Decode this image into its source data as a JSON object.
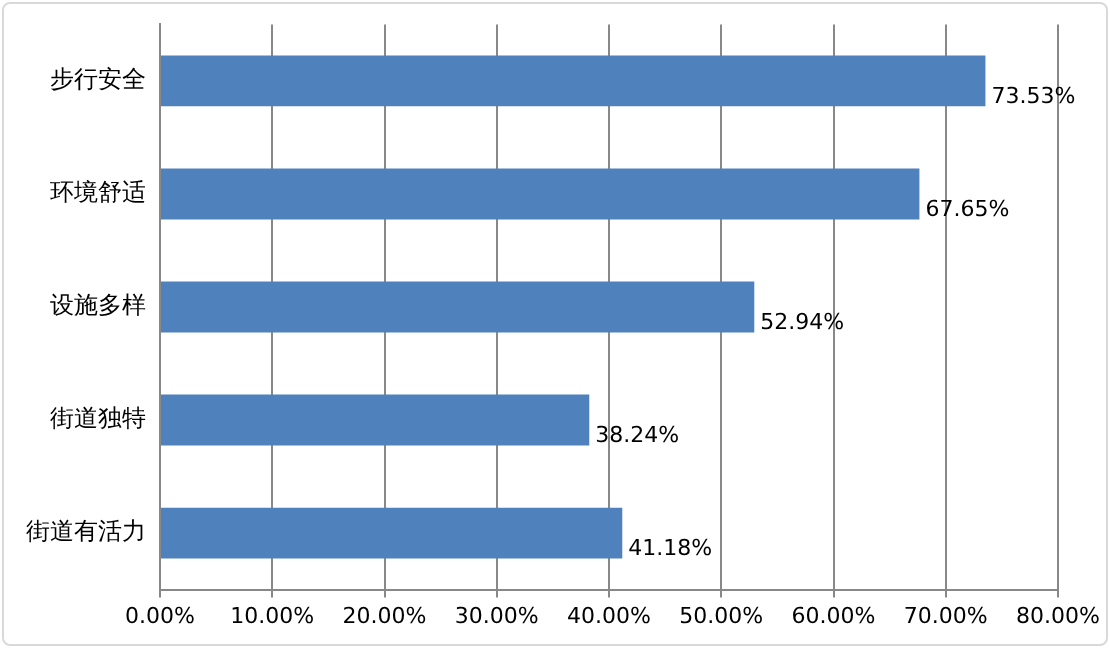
{
  "chart_data": {
    "type": "bar",
    "orientation": "horizontal",
    "categories": [
      "步行安全",
      "环境舒适",
      "设施多样",
      "街道独特",
      "街道有活力"
    ],
    "values": [
      73.53,
      67.65,
      52.94,
      38.24,
      41.18
    ],
    "color": "#4f81bd",
    "value_labels": [
      "73.53%",
      "67.65%",
      "52.94%",
      "38.24%",
      "41.18%"
    ],
    "xlim": [
      0,
      80
    ],
    "xticks": [
      {
        "value": 0,
        "label": "0.00%"
      },
      {
        "value": 10,
        "label": "10.00%"
      },
      {
        "value": 20,
        "label": "20.00%"
      },
      {
        "value": 30,
        "label": "30.00%"
      },
      {
        "value": 40,
        "label": "40.00%"
      },
      {
        "value": 50,
        "label": "50.00%"
      },
      {
        "value": 60,
        "label": "60.00%"
      },
      {
        "value": 70,
        "label": "70.00%"
      },
      {
        "value": 80,
        "label": "80.00%"
      }
    ],
    "grid": "x"
  }
}
